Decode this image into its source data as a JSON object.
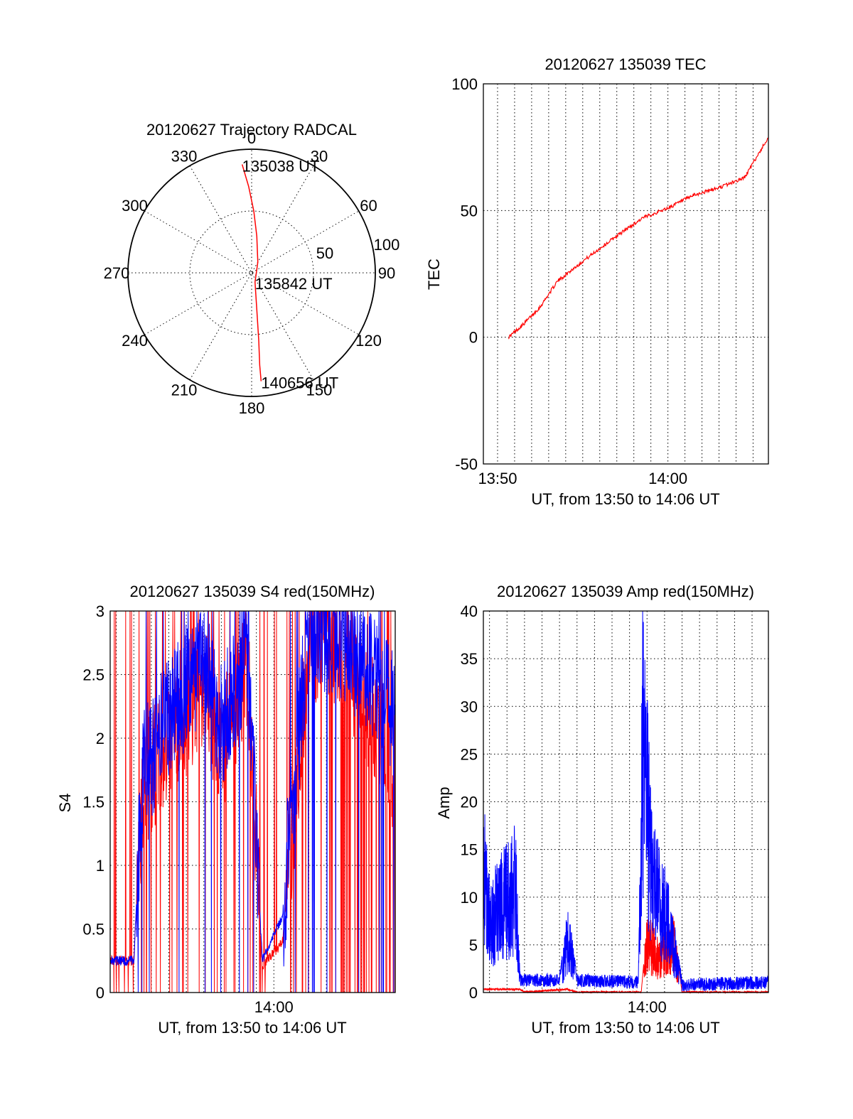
{
  "chart_data": [
    {
      "type": "polar",
      "title": "20120627 Trajectory RADCAL",
      "angle_labels": [
        "0",
        "30",
        "60",
        "90",
        "120",
        "150",
        "180",
        "210",
        "240",
        "270",
        "300",
        "330"
      ],
      "radial_labels": [
        "50",
        "100"
      ],
      "rlim": [
        0,
        100
      ],
      "grid": true,
      "series": [
        {
          "points": [
            {
              "az": 355,
              "r": 88
            },
            {
              "az": 358,
              "r": 70
            },
            {
              "az": 2,
              "r": 50
            },
            {
              "az": 8,
              "r": 30
            },
            {
              "az": 30,
              "r": 10
            },
            {
              "az": 160,
              "r": 8
            },
            {
              "az": 172,
              "r": 30
            },
            {
              "az": 174,
              "r": 55
            },
            {
              "az": 175,
              "r": 75
            },
            {
              "az": 175,
              "r": 88
            }
          ]
        }
      ],
      "annotations": [
        {
          "text": "135038 UT",
          "az": 355,
          "r": 88
        },
        {
          "text": "135842 UT",
          "az": 160,
          "r": 8
        },
        {
          "text": "140656 UT",
          "az": 175,
          "r": 88
        }
      ]
    },
    {
      "type": "line",
      "title": "20120627 135039 TEC",
      "xlabel": "UT, from 13:50 to 14:06 UT",
      "ylabel": "TEC",
      "xlim": [
        "13:49:10",
        "14:05:54"
      ],
      "ylim": [
        -50,
        100
      ],
      "xticks": [
        "13:50",
        "14:00"
      ],
      "yticks": [
        "-50",
        "0",
        "50",
        "100"
      ],
      "grid": true,
      "series": [
        {
          "x": [
            "13:50:39",
            "13:51:30",
            "13:52:30",
            "13:53:30",
            "13:55:00",
            "13:57:00",
            "13:58:30",
            "14:00:00",
            "14:01:30",
            "14:03:00",
            "14:04:30",
            "14:05:54"
          ],
          "y": [
            0,
            5,
            12,
            22,
            30,
            40,
            47,
            51,
            56,
            59,
            63,
            79
          ]
        }
      ]
    },
    {
      "type": "line",
      "title": "20120627 135039 S4 red(150MHz)",
      "xlabel": "UT, from 13:50 to 14:06 UT",
      "ylabel": "S4",
      "xlim": [
        "13:50:39",
        "14:06:56"
      ],
      "ylim": [
        0,
        3
      ],
      "xticks": [
        "14:00"
      ],
      "yticks": [
        "0",
        "0.5",
        "1",
        "1.5",
        "2",
        "2.5",
        "3"
      ],
      "grid": true,
      "series": [
        {
          "x": [
            "13:50:39",
            "13:52:00",
            "13:52:30",
            "13:54:00",
            "13:55:30",
            "13:56:00",
            "13:57:00",
            "13:58:30",
            "13:59:20",
            "14:00:30",
            "14:02:00",
            "14:04:00",
            "14:06:56"
          ],
          "y": [
            0.25,
            0.25,
            1.6,
            2.0,
            2.3,
            2.4,
            1.9,
            2.6,
            0.2,
            0.4,
            2.8,
            2.7,
            1.7
          ]
        },
        {
          "x": [
            "13:50:39",
            "13:52:00",
            "13:52:30",
            "13:54:00",
            "13:55:30",
            "13:56:00",
            "13:57:00",
            "13:58:30",
            "13:59:20",
            "14:00:30",
            "14:02:00",
            "14:04:00",
            "14:06:56"
          ],
          "y": [
            0.25,
            0.25,
            1.7,
            2.2,
            2.5,
            2.6,
            2.1,
            2.7,
            0.25,
            0.6,
            2.9,
            2.8,
            2.2
          ]
        }
      ]
    },
    {
      "type": "line",
      "title": "20120627 135039 Amp red(150MHz)",
      "xlabel": "UT, from 13:50 to 14:06 UT",
      "ylabel": "Amp",
      "xlim": [
        "13:50:39",
        "14:06:56"
      ],
      "ylim": [
        0,
        40
      ],
      "xticks": [
        "14:00"
      ],
      "yticks": [
        "0",
        "5",
        "10",
        "15",
        "20",
        "25",
        "30",
        "35",
        "40"
      ],
      "grid": true,
      "series": [
        {
          "x": [
            "13:50:39",
            "13:52:45",
            "13:53:00",
            "13:55:25",
            "13:56:00",
            "13:59:40",
            "14:00:00",
            "14:00:40",
            "14:01:30",
            "14:02:00",
            "14:06:56"
          ],
          "y": [
            0.3,
            0.3,
            0,
            0.3,
            0,
            0,
            7,
            5,
            7,
            0,
            0
          ]
        },
        {
          "x": [
            "13:50:39",
            "13:51:00",
            "13:52:30",
            "13:52:45",
            "13:55:00",
            "13:55:30",
            "13:56:00",
            "13:59:30",
            "13:59:45",
            "14:00:20",
            "14:01:00",
            "14:01:40",
            "14:02:00",
            "14:06:56"
          ],
          "y": [
            18,
            10,
            15,
            1,
            1,
            8,
            1,
            0.8,
            36,
            15,
            12,
            5,
            0.5,
            0.8
          ]
        }
      ]
    }
  ]
}
